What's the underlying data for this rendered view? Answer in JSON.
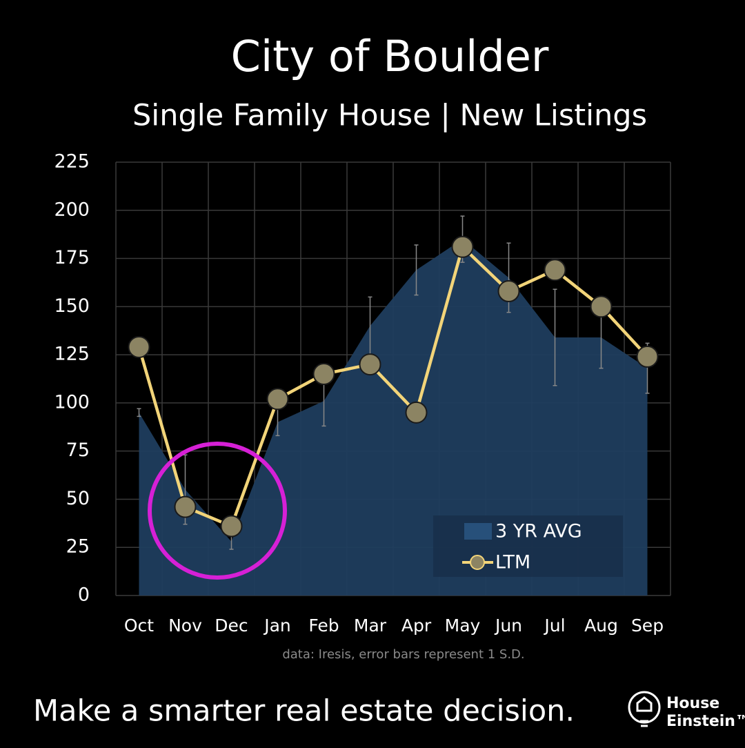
{
  "chart_data": {
    "type": "area-line",
    "title": "City of Boulder",
    "subtitle": "Single Family House | New Listings",
    "note": "data: Iresis,  error bars represent 1 S.D.",
    "categories": [
      "Oct",
      "Nov",
      "Dec",
      "Jan",
      "Feb",
      "Mar",
      "Apr",
      "May",
      "Jun",
      "Jul",
      "Aug",
      "Sep"
    ],
    "series": [
      {
        "name": "3 YR AVG",
        "type": "area",
        "color": "#1f3d5e",
        "values": [
          95,
          55,
          28,
          90,
          101,
          140,
          169,
          185,
          165,
          134,
          134,
          118
        ],
        "errors": [
          2,
          18,
          4,
          7,
          13,
          15,
          13,
          12,
          18,
          25,
          16,
          13
        ]
      },
      {
        "name": "LTM",
        "type": "line",
        "color": "#f2d479",
        "values": [
          129,
          46,
          36,
          102,
          115,
          120,
          95,
          181,
          158,
          169,
          150,
          124
        ]
      }
    ],
    "ylim": [
      0,
      225
    ],
    "yticks": [
      0,
      25,
      50,
      75,
      100,
      125,
      150,
      175,
      200,
      225
    ],
    "grid": true
  },
  "footer": {
    "tagline": "Make a smarter real estate decision.",
    "brand": [
      "House",
      "Einstein™"
    ]
  }
}
